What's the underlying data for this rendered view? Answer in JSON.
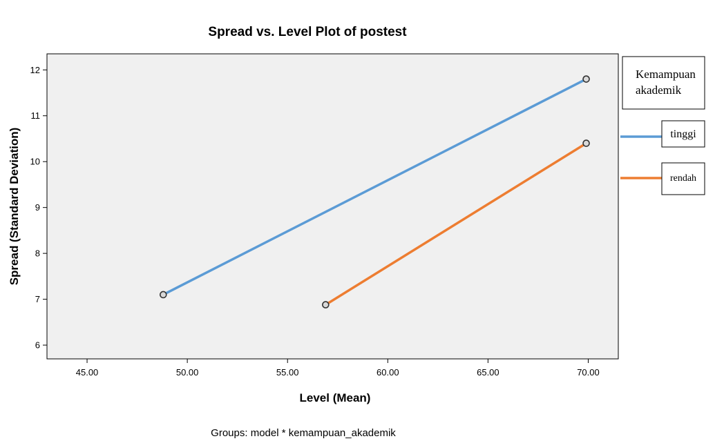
{
  "chart_data": {
    "type": "line",
    "title": "Spread vs. Level Plot of postest",
    "xlabel": "Level (Mean)",
    "ylabel": "Spread (Standard Deviation)",
    "footnote": "Groups: model * kemampuan_akademik",
    "xlim": [
      43.0,
      71.5
    ],
    "ylim": [
      5.7,
      12.35
    ],
    "x_ticks": [
      "45.00",
      "50.00",
      "55.00",
      "60.00",
      "65.00",
      "70.00"
    ],
    "x_tick_values": [
      45,
      50,
      55,
      60,
      65,
      70
    ],
    "y_ticks": [
      "6",
      "7",
      "8",
      "9",
      "10",
      "11",
      "12"
    ],
    "y_tick_values": [
      6,
      7,
      8,
      9,
      10,
      11,
      12
    ],
    "grid": false,
    "plot_background": "#f0f0f0",
    "legend": {
      "title": "Kemampuan akademik",
      "title_lines": [
        "Kemampuan",
        "akademik"
      ],
      "placement": "right"
    },
    "series": [
      {
        "name": "tinggi",
        "color": "#5b9bd5",
        "points": [
          [
            48.8,
            7.1
          ],
          [
            69.9,
            11.8
          ]
        ]
      },
      {
        "name": "rendah",
        "color": "#ed7d31",
        "points": [
          [
            56.9,
            6.88
          ],
          [
            69.9,
            10.4
          ]
        ]
      }
    ]
  }
}
